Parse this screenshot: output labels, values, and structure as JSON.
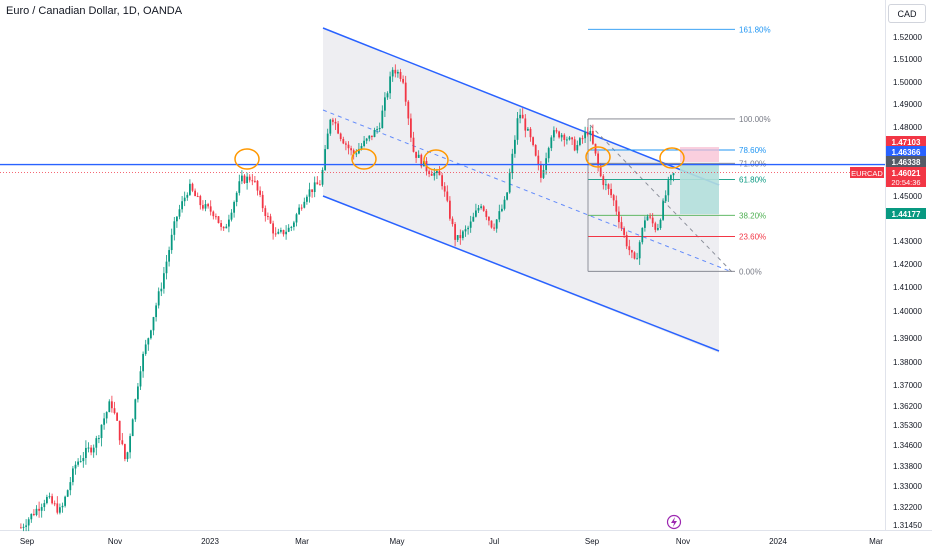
{
  "chart_data": {
    "type": "candlestick",
    "title": "Euro / Canadian Dollar, 1D, OANDA",
    "symbol": "EURCAD",
    "currency_label": "CAD",
    "countdown": "20:54:36",
    "y_ticks": [
      1.52,
      1.51,
      1.5,
      1.49,
      1.48,
      1.46,
      1.45,
      1.43,
      1.42,
      1.41,
      1.4,
      1.39,
      1.38,
      1.37,
      1.362,
      1.353,
      1.346,
      1.338,
      1.33,
      1.322,
      1.3145
    ],
    "y_tick_labels": [
      "1.52000",
      "1.51000",
      "1.50000",
      "1.49000",
      "1.48000",
      "1.46000",
      "1.45000",
      "1.43000",
      "1.42000",
      "1.41000",
      "1.40000",
      "1.39000",
      "1.38000",
      "1.37000",
      "1.36200",
      "1.35300",
      "1.34600",
      "1.33800",
      "1.33000",
      "1.32200",
      "1.31450"
    ],
    "x_labels": [
      "Sep",
      "Nov",
      "2023",
      "Mar",
      "May",
      "Jul",
      "Sep",
      "Nov",
      "2024",
      "Mar"
    ],
    "price_tags": [
      {
        "label": "1.47103",
        "value": 1.47103,
        "color": "#f23645"
      },
      {
        "label": "1.46366",
        "value": 1.46366,
        "color": "#2962ff"
      },
      {
        "label": "1.46338",
        "value": 1.46338,
        "color": "#555a66"
      },
      {
        "label": "1.46021",
        "value": 1.46021,
        "color": "#f23645"
      },
      {
        "label": "1.44177",
        "value": 1.44177,
        "color": "#089981"
      }
    ],
    "horizontal_line": 1.46366,
    "fib_levels": [
      {
        "label": "161.80%",
        "value": 1.5235,
        "color": "#2196f3"
      },
      {
        "label": "100.00%",
        "value": 1.4835,
        "color": "#787b86"
      },
      {
        "label": "78.60%",
        "value": 1.47,
        "color": "#2196f3"
      },
      {
        "label": "71.00%",
        "value": 1.4642,
        "color": "#787b86"
      },
      {
        "label": "61.80%",
        "value": 1.4572,
        "color": "#089981"
      },
      {
        "label": "38.20%",
        "value": 1.4414,
        "color": "#4caf50"
      },
      {
        "label": "23.60%",
        "value": 1.432,
        "color": "#f23645"
      },
      {
        "label": "0.00%",
        "value": 1.4168,
        "color": "#787b86"
      }
    ],
    "colors": {
      "up": "#089981",
      "down": "#f23645",
      "channel": "#2962ff",
      "channel_fill": "#eeeef3",
      "circle": "#ff9800"
    }
  }
}
